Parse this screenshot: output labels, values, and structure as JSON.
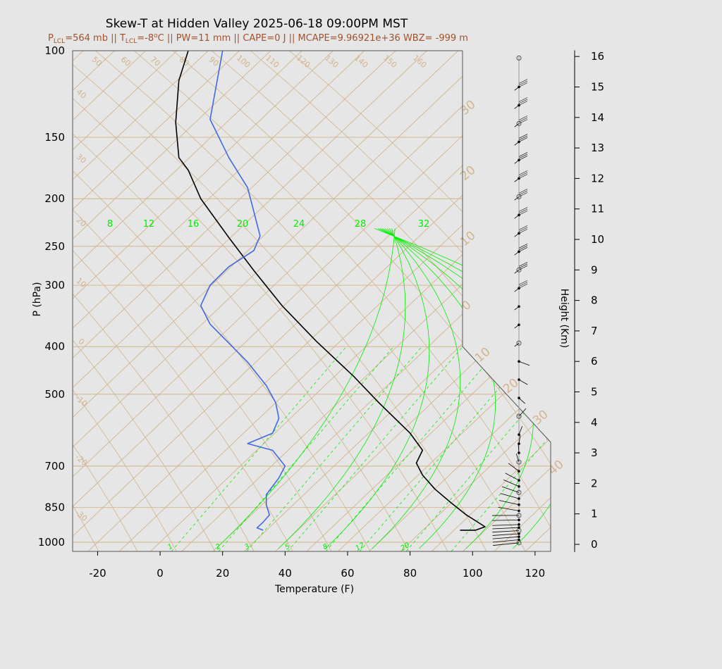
{
  "header": {
    "title": "Skew-T at Hidden Valley 2025-06-18 09:00PM MST",
    "subtitle": {
      "lcl_p_sym": "P",
      "lcl_p_sub": "LCL",
      "lcl_p_val": "=564 mb || ",
      "lcl_t_sym": "T",
      "lcl_t_sub": "LCL",
      "lcl_t_val": "=-8",
      "deg": "o",
      "rest": "C || PW=11 mm || CAPE=0 J || MCAPE=9.96921e+36 WBZ= -999 m"
    }
  },
  "colors": {
    "background": "#e6e6e6",
    "temperature": "#000000",
    "dewpoint": "#4169e1",
    "isotherm": "#d2b48c",
    "mixing_ratio": "#00ee00",
    "barb": "#000000"
  },
  "chart_data": {
    "type": "line",
    "title": "Skew-T at Hidden Valley 2025-06-18 09:00PM MST",
    "xlabel": "Temperature (F)",
    "ylabel": "P (hPa)",
    "y2label": "Height (Km)",
    "xlim": [
      -28,
      125
    ],
    "x_ticks": [
      "-20",
      "0",
      "20",
      "40",
      "60",
      "80",
      "100",
      "120"
    ],
    "pressure_ticks": [
      "100",
      "150",
      "200",
      "250",
      "300",
      "400",
      "500",
      "700",
      "850",
      "1000"
    ],
    "height_ticks": [
      "0",
      "1",
      "2",
      "3",
      "4",
      "5",
      "6",
      "7",
      "8",
      "9",
      "10",
      "11",
      "12",
      "13",
      "14",
      "15",
      "16"
    ],
    "isotherm_labels_left": [
      "40",
      "30",
      "20",
      "10",
      "0",
      "-10",
      "-20",
      "-30"
    ],
    "isotherm_labels_top": [
      "50",
      "60",
      "70",
      "80",
      "90",
      "100",
      "110",
      "120",
      "130",
      "140",
      "150",
      "160"
    ],
    "isotherm_labels_right": [
      "30",
      "20",
      "10",
      "0",
      "10",
      "20",
      "30",
      "40"
    ],
    "mixing_ratio_labels_top": [
      "8",
      "12",
      "16",
      "20",
      "24",
      "28",
      "32"
    ],
    "mixing_ratio_labels_bottom": [
      "1",
      "2",
      "3",
      "5",
      "8",
      "12",
      "20"
    ],
    "series": [
      {
        "name": "Temperature",
        "points": [
          [
            945,
            96
          ],
          [
            945,
            101
          ],
          [
            930,
            104
          ],
          [
            880,
            98
          ],
          [
            830,
            93
          ],
          [
            780,
            88
          ],
          [
            730,
            84
          ],
          [
            690,
            82
          ],
          [
            650,
            84
          ],
          [
            600,
            80
          ],
          [
            520,
            70
          ],
          [
            460,
            62
          ],
          [
            390,
            50
          ],
          [
            330,
            39
          ],
          [
            280,
            30
          ],
          [
            240,
            22
          ],
          [
            200,
            13
          ],
          [
            175,
            9
          ],
          [
            165,
            6
          ],
          [
            140,
            5
          ],
          [
            115,
            6
          ],
          [
            100,
            9
          ]
        ]
      },
      {
        "name": "Dewpoint",
        "points": [
          [
            945,
            33
          ],
          [
            935,
            31
          ],
          [
            910,
            33
          ],
          [
            880,
            35
          ],
          [
            840,
            34
          ],
          [
            800,
            34
          ],
          [
            740,
            38
          ],
          [
            700,
            40
          ],
          [
            650,
            36
          ],
          [
            645,
            34
          ],
          [
            630,
            28
          ],
          [
            600,
            36
          ],
          [
            560,
            38
          ],
          [
            520,
            37
          ],
          [
            480,
            34
          ],
          [
            430,
            28
          ],
          [
            360,
            16
          ],
          [
            330,
            13
          ],
          [
            300,
            16
          ],
          [
            275,
            22
          ],
          [
            255,
            30
          ],
          [
            238,
            32
          ],
          [
            190,
            28
          ],
          [
            165,
            22
          ],
          [
            138,
            16
          ],
          [
            100,
            20
          ]
        ]
      }
    ],
    "wind_levels_km": [
      0.05,
      0.15,
      0.25,
      0.35,
      0.45,
      0.55,
      0.65,
      0.8,
      0.95,
      1.1,
      1.3,
      1.5,
      1.7,
      1.9,
      2.1,
      2.4,
      2.7,
      3.0,
      3.3,
      3.6,
      4.2,
      4.8,
      5.4,
      6.0,
      6.6,
      7.2,
      7.8,
      8.4,
      9.0,
      9.6,
      10.2,
      10.8,
      11.4,
      12.0,
      12.6,
      13.2,
      13.8,
      14.4,
      15.0
    ]
  }
}
